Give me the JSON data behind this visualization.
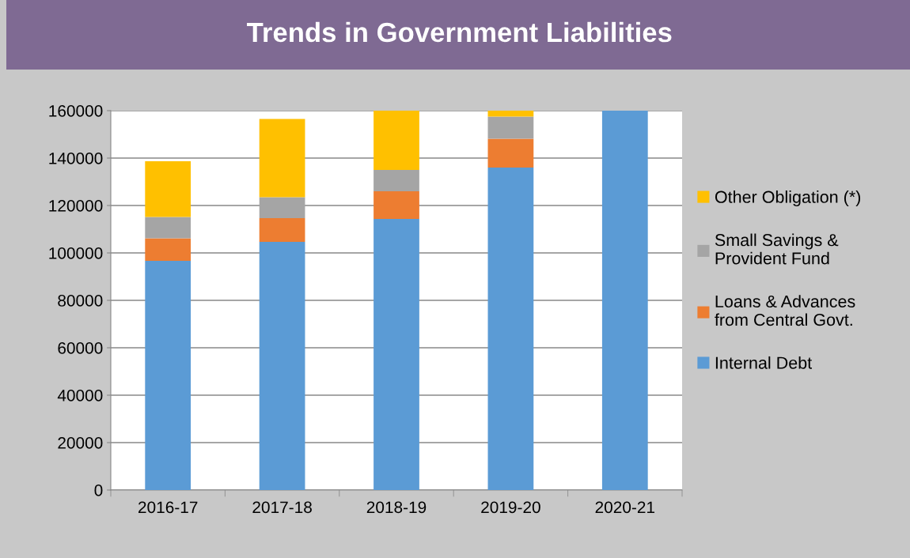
{
  "chart_data": {
    "type": "bar",
    "title": "Trends in Government Liabilities",
    "stacked": true,
    "categories": [
      "2016-17",
      "2017-18",
      "2018-19",
      "2019-20",
      "2020-21"
    ],
    "series": [
      {
        "name": "Internal Debt",
        "color": "#5b9bd5",
        "values": [
          96700,
          104700,
          114300,
          136000,
          160000
        ]
      },
      {
        "name": "Loans & Advances\nfrom Central Govt.",
        "color": "#ed7d31",
        "values": [
          9500,
          10000,
          11700,
          12200,
          null
        ]
      },
      {
        "name": "Small Savings &\nProvident Fund",
        "color": "#a5a5a5",
        "values": [
          9000,
          8800,
          9000,
          9300,
          null
        ]
      },
      {
        "name": "Other Obligation (*)",
        "color": "#ffc000",
        "values": [
          23500,
          33000,
          25000,
          2500,
          null
        ]
      }
    ],
    "ylim": [
      0,
      160000
    ],
    "yticks": [
      0,
      20000,
      40000,
      60000,
      80000,
      100000,
      120000,
      140000,
      160000
    ],
    "grid": "y",
    "legend": "right"
  }
}
